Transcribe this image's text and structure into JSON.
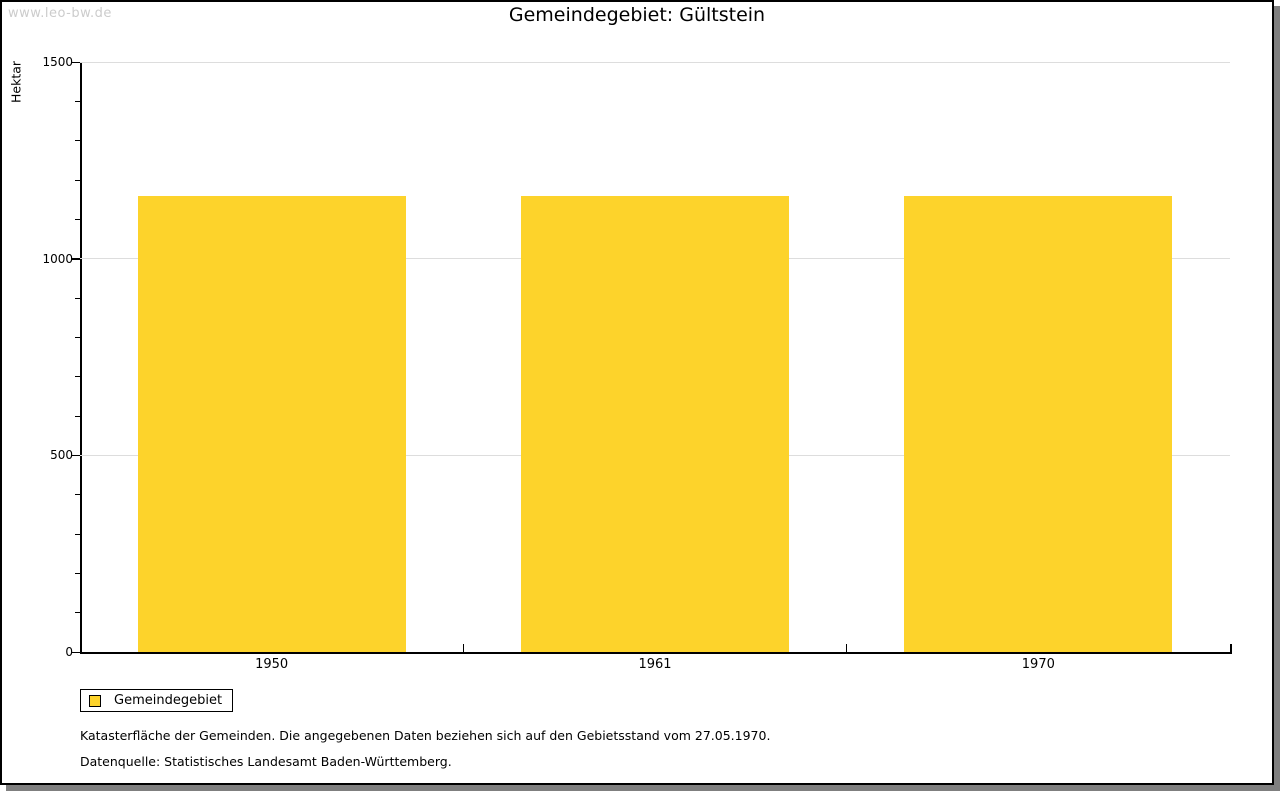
{
  "watermark": "www.leo-bw.de",
  "chart_data": {
    "type": "bar",
    "title": "Gemeindegebiet: Gültstein",
    "xlabel": "",
    "ylabel": "Hektar",
    "categories": [
      "1950",
      "1961",
      "1970"
    ],
    "series": [
      {
        "name": "Gemeindegebiet",
        "values": [
          1160,
          1160,
          1160
        ]
      }
    ],
    "ylim": [
      0,
      1500
    ],
    "yticks_major": [
      0,
      500,
      1000,
      1500
    ],
    "ytick_minor_step": 100,
    "grid": "horizontal-major",
    "legend_position": "bottom-left",
    "bar_color": "#fdd32b",
    "gridline_color": "#dddddd"
  },
  "legend": {
    "label": "Gemeindegebiet"
  },
  "footer": {
    "note1": "Katasterfläche der Gemeinden. Die angegebenen Daten beziehen sich auf den Gebietsstand vom 27.05.1970.",
    "note2": "Datenquelle: Statistisches Landesamt Baden-Württemberg."
  }
}
